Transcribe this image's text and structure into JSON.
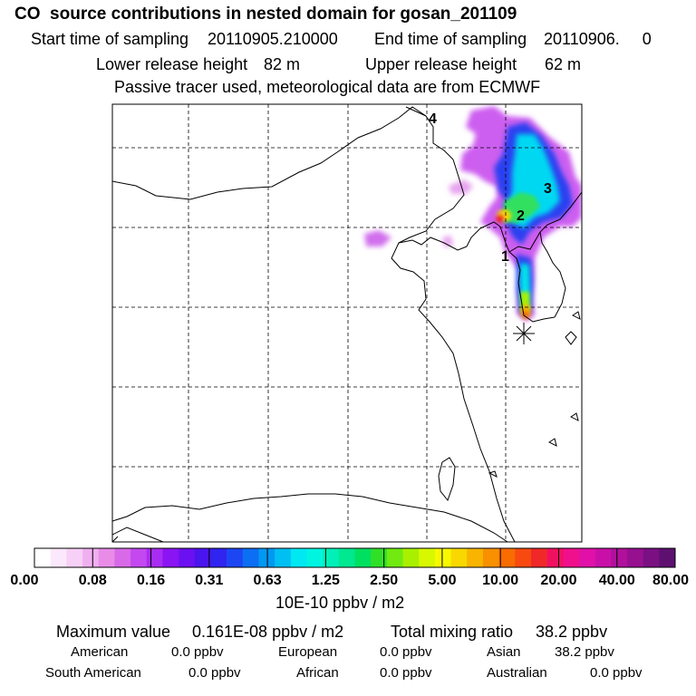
{
  "header": {
    "title": "CO  source contributions in nested domain for gosan_201109",
    "start_label": "Start time of sampling",
    "start_value": "20110905.210000",
    "end_label": "End time of sampling",
    "end_value": "20110906.     0",
    "lower_label": "Lower release height",
    "lower_value": "82 m",
    "upper_label": "Upper release height",
    "upper_value": "62 m",
    "tracer_line": "Passive tracer used, meteorological data are from ECMWF"
  },
  "chart_data": {
    "type": "heatmap",
    "title": "CO  source contributions in nested domain for gosan_201109",
    "colorbar": {
      "unit_label": "10E-10 ppbv / m2",
      "tick_labels": [
        "0.00",
        "0.08",
        "0.16",
        "0.31",
        "0.63",
        "1.25",
        "2.50",
        "5.00",
        "10.00",
        "20.00",
        "40.00",
        "80.00"
      ],
      "colors": [
        "#ffffff",
        "#fce8fc",
        "#f7d0f7",
        "#f0b0f0",
        "#e88ce8",
        "#d86ae8",
        "#c448f0",
        "#a82cf2",
        "#8a14f2",
        "#6b10f0",
        "#4a14ee",
        "#3024f0",
        "#1c46f2",
        "#0c6ef2",
        "#0098f2",
        "#00bff2",
        "#00e8f2",
        "#00f5e0",
        "#00f0b8",
        "#00e890",
        "#00e060",
        "#30e028",
        "#70ea10",
        "#a8f000",
        "#d8f800",
        "#f8f800",
        "#f8d800",
        "#f8b400",
        "#f89000",
        "#f86c00",
        "#f84a10",
        "#f02828",
        "#f01060",
        "#f0108c",
        "#e010a8",
        "#c810a8",
        "#b0109c",
        "#961090",
        "#7a1082",
        "#5e1070"
      ]
    },
    "trajectory_labels": [
      "1",
      "2",
      "3",
      "4"
    ],
    "receptor_marker": "gosan"
  },
  "summary": {
    "max_label": "Maximum value",
    "max_value": "0.161E-08 ppbv / m2",
    "total_label": "Total mixing ratio",
    "total_value": "38.2 ppbv",
    "regions": [
      {
        "name": "American",
        "value": "0.0 ppbv"
      },
      {
        "name": "European",
        "value": "0.0 ppbv"
      },
      {
        "name": "Asian",
        "value": "38.2 ppbv"
      },
      {
        "name": "South American",
        "value": "0.0 ppbv"
      },
      {
        "name": "African",
        "value": "0.0 ppbv"
      },
      {
        "name": "Australian",
        "value": "0.0 ppbv"
      }
    ]
  }
}
